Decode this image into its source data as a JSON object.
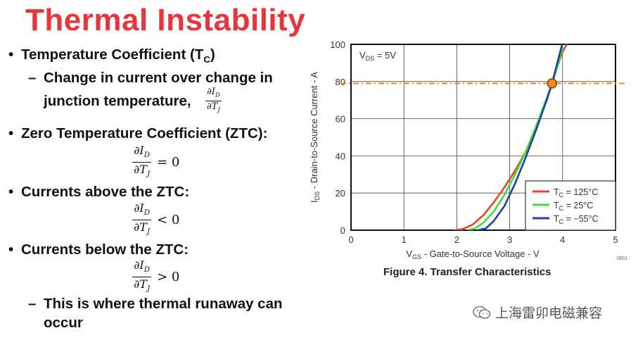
{
  "slide": {
    "title": "Thermal Instability",
    "bullets": {
      "b1_prefix": "Temperature Coefficient (T",
      "b1_sub": "C",
      "b1_suffix": ")",
      "b1_sub1_line1": "Change in current over change in",
      "b1_sub1_line2": "junction temperature,",
      "b2": "Zero Temperature Coefficient (ZTC):",
      "b3": "Currents above the ZTC:",
      "b4": "Currents below the ZTC:",
      "b4_sub1_line1": "This is where thermal runaway can",
      "b4_sub1_line2": "occur"
    },
    "math": {
      "num": "∂I",
      "num_sub": "D",
      "den": "∂T",
      "den_sub": "J",
      "eq_zero": "= 0",
      "lt_zero": "< 0",
      "gt_zero": "> 0",
      "comma": ""
    }
  },
  "figure": {
    "caption": "Figure 4. Transfer Characteristics",
    "code": "0601"
  },
  "watermark": {
    "text": "上海雷卯电磁兼容",
    "icon": "wechat-icon"
  },
  "chart_data": {
    "type": "line",
    "xlabel_main": "V",
    "xlabel_sub": "GS",
    "xlabel_rest": " - Gate-to-Source Voltage - V",
    "ylabel_main": "I",
    "ylabel_sub": "DS",
    "ylabel_rest": " - Drain-to-Source Current - A",
    "xlim": [
      0,
      5
    ],
    "ylim": [
      0,
      100
    ],
    "xticks": [
      "0",
      "1",
      "2",
      "3",
      "4",
      "5"
    ],
    "yticks": [
      "0",
      "20",
      "40",
      "60",
      "80",
      "100"
    ],
    "grid": true,
    "annotation_main": "V",
    "annotation_sub": "DS",
    "annotation_rest": " = 5V",
    "ztc_point": {
      "x": 3.8,
      "y": 79
    },
    "ztc_line_y": 79,
    "legend_position": "bottom-right",
    "series": [
      {
        "name_main": "T",
        "name_sub": "C",
        "name_rest": " = 125°C",
        "color": "#e8452c",
        "x": [
          1.95,
          2.1,
          2.3,
          2.5,
          2.7,
          2.9,
          3.1,
          3.3,
          3.5,
          3.7,
          3.8,
          3.9,
          4.0,
          4.1
        ],
        "y": [
          0,
          0.5,
          3,
          8,
          15,
          23,
          32,
          42,
          55,
          70,
          79,
          88,
          96,
          101
        ]
      },
      {
        "name_main": "T",
        "name_sub": "C",
        "name_rest": " = 25°C",
        "color": "#3ddc3d",
        "x": [
          2.2,
          2.35,
          2.5,
          2.7,
          2.9,
          3.1,
          3.3,
          3.5,
          3.7,
          3.8,
          3.9,
          4.0
        ],
        "y": [
          0,
          1,
          4,
          10,
          19,
          30,
          42,
          56,
          71,
          79,
          88,
          98
        ]
      },
      {
        "name_main": "T",
        "name_sub": "C",
        "name_rest": " = −55°C",
        "color": "#1f3fa8",
        "x": [
          2.4,
          2.55,
          2.7,
          2.9,
          3.1,
          3.3,
          3.5,
          3.7,
          3.8,
          3.9,
          4.0
        ],
        "y": [
          0,
          1,
          5,
          13,
          25,
          39,
          54,
          70,
          79,
          90,
          101
        ]
      }
    ]
  }
}
